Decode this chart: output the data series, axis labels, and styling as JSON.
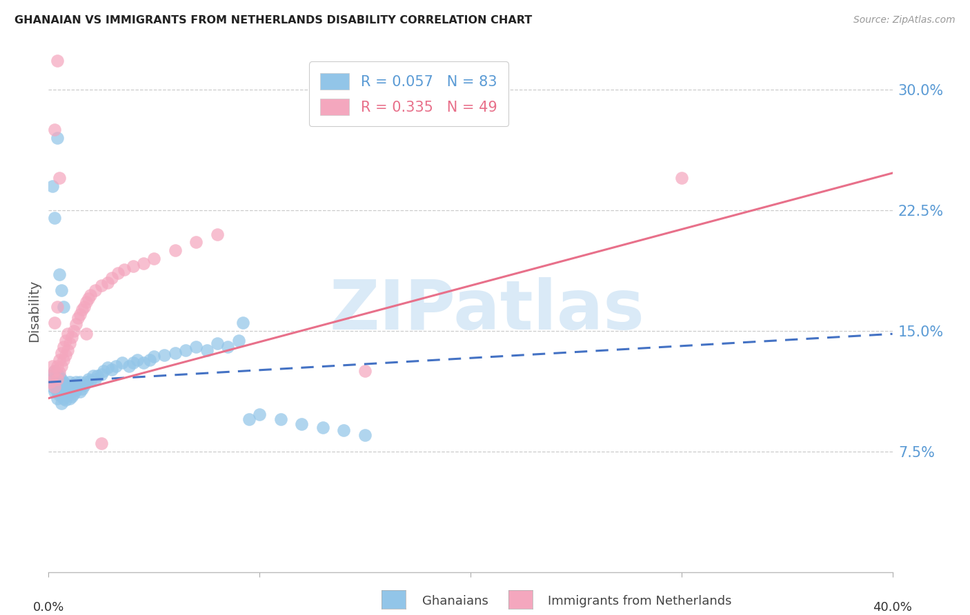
{
  "title": "GHANAIAN VS IMMIGRANTS FROM NETHERLANDS DISABILITY CORRELATION CHART",
  "source": "Source: ZipAtlas.com",
  "ylabel": "Disability",
  "ytick_labels": [
    "30.0%",
    "22.5%",
    "15.0%",
    "7.5%"
  ],
  "ytick_values": [
    0.3,
    0.225,
    0.15,
    0.075
  ],
  "xlim": [
    0.0,
    0.4
  ],
  "ylim": [
    0.0,
    0.325
  ],
  "ghanaian_color": "#92C5E8",
  "netherlands_color": "#F4A7BE",
  "ghanaian_R": 0.057,
  "ghanaian_N": 83,
  "netherlands_R": 0.335,
  "netherlands_N": 49,
  "background_color": "#ffffff",
  "grid_color": "#cccccc",
  "axis_label_color": "#5b9bd5",
  "watermark_text": "ZIPatlas",
  "watermark_color": "#daeaf7",
  "ghanaian_line_color": "#4472c4",
  "netherlands_line_color": "#E8708A",
  "ghanaian_line_style": "--",
  "netherlands_line_style": "-",
  "gh_line_x": [
    0.0,
    0.4
  ],
  "gh_line_y": [
    0.118,
    0.148
  ],
  "nl_line_x": [
    0.0,
    0.4
  ],
  "nl_line_y": [
    0.108,
    0.248
  ],
  "gh_x": [
    0.001,
    0.002,
    0.002,
    0.002,
    0.003,
    0.003,
    0.003,
    0.003,
    0.003,
    0.004,
    0.004,
    0.004,
    0.004,
    0.004,
    0.005,
    0.005,
    0.005,
    0.005,
    0.006,
    0.006,
    0.006,
    0.006,
    0.007,
    0.007,
    0.007,
    0.008,
    0.008,
    0.008,
    0.009,
    0.009,
    0.01,
    0.01,
    0.01,
    0.011,
    0.011,
    0.012,
    0.012,
    0.013,
    0.013,
    0.014,
    0.015,
    0.015,
    0.016,
    0.017,
    0.018,
    0.019,
    0.02,
    0.021,
    0.022,
    0.023,
    0.025,
    0.026,
    0.028,
    0.03,
    0.032,
    0.035,
    0.038,
    0.04,
    0.042,
    0.045,
    0.048,
    0.05,
    0.055,
    0.06,
    0.065,
    0.07,
    0.075,
    0.08,
    0.085,
    0.09,
    0.095,
    0.1,
    0.11,
    0.12,
    0.13,
    0.14,
    0.15,
    0.092,
    0.004,
    0.003,
    0.002,
    0.005,
    0.006,
    0.007
  ],
  "gh_y": [
    0.12,
    0.115,
    0.118,
    0.122,
    0.112,
    0.116,
    0.119,
    0.122,
    0.125,
    0.108,
    0.112,
    0.116,
    0.119,
    0.123,
    0.11,
    0.114,
    0.118,
    0.122,
    0.105,
    0.11,
    0.115,
    0.12,
    0.108,
    0.113,
    0.118,
    0.107,
    0.112,
    0.117,
    0.11,
    0.115,
    0.108,
    0.113,
    0.118,
    0.109,
    0.115,
    0.111,
    0.116,
    0.113,
    0.118,
    0.116,
    0.112,
    0.118,
    0.114,
    0.116,
    0.118,
    0.12,
    0.119,
    0.122,
    0.12,
    0.122,
    0.123,
    0.125,
    0.127,
    0.126,
    0.128,
    0.13,
    0.128,
    0.13,
    0.132,
    0.13,
    0.132,
    0.134,
    0.135,
    0.136,
    0.138,
    0.14,
    0.138,
    0.142,
    0.14,
    0.144,
    0.095,
    0.098,
    0.095,
    0.092,
    0.09,
    0.088,
    0.085,
    0.155,
    0.27,
    0.22,
    0.24,
    0.185,
    0.175,
    0.165
  ],
  "nl_x": [
    0.001,
    0.002,
    0.002,
    0.003,
    0.003,
    0.003,
    0.004,
    0.004,
    0.004,
    0.005,
    0.005,
    0.005,
    0.006,
    0.006,
    0.007,
    0.007,
    0.008,
    0.008,
    0.009,
    0.009,
    0.01,
    0.011,
    0.012,
    0.013,
    0.014,
    0.015,
    0.016,
    0.017,
    0.018,
    0.019,
    0.02,
    0.022,
    0.025,
    0.028,
    0.03,
    0.033,
    0.036,
    0.04,
    0.045,
    0.05,
    0.06,
    0.07,
    0.08,
    0.15,
    0.3,
    0.003,
    0.004,
    0.018,
    0.025
  ],
  "nl_y": [
    0.118,
    0.122,
    0.128,
    0.115,
    0.125,
    0.275,
    0.12,
    0.128,
    0.318,
    0.124,
    0.132,
    0.245,
    0.128,
    0.136,
    0.132,
    0.14,
    0.135,
    0.144,
    0.138,
    0.148,
    0.142,
    0.146,
    0.15,
    0.154,
    0.158,
    0.16,
    0.163,
    0.165,
    0.168,
    0.17,
    0.172,
    0.175,
    0.178,
    0.18,
    0.183,
    0.186,
    0.188,
    0.19,
    0.192,
    0.195,
    0.2,
    0.205,
    0.21,
    0.125,
    0.245,
    0.155,
    0.165,
    0.148,
    0.08
  ]
}
